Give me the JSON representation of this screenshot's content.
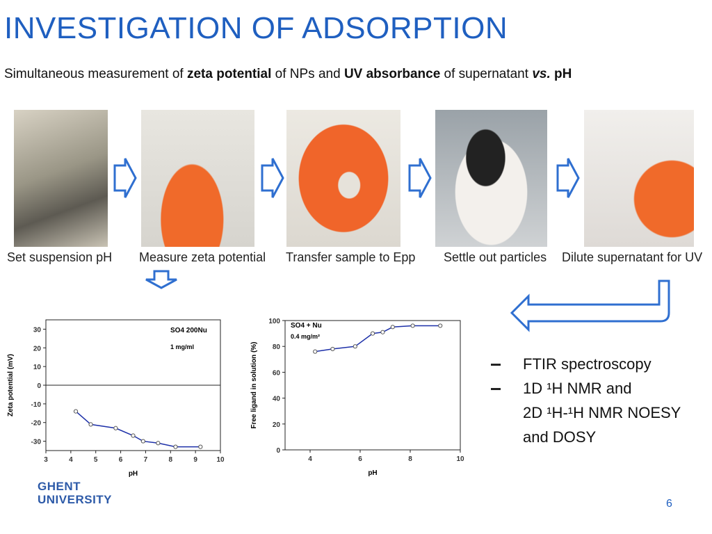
{
  "header": {
    "title": "INVESTIGATION OF ADSORPTION",
    "subtitle": [
      {
        "text": "Simultaneous measurement of ",
        "bold": false
      },
      {
        "text": "zeta potential",
        "bold": true
      },
      {
        "text": " of NPs and ",
        "bold": false
      },
      {
        "text": "UV absorbance",
        "bold": true
      },
      {
        "text": " of supernatant ",
        "bold": false
      },
      {
        "text": "vs.",
        "bold": true,
        "italic": true
      },
      {
        "text": " pH",
        "bold": true
      }
    ]
  },
  "steps": [
    "Set suspension pH",
    "Measure zeta potential",
    "Transfer sample to Epp",
    "Settle out particles",
    "Dilute supernatant for UV"
  ],
  "charts": [
    {
      "type": "line",
      "ylabel": "Zeta potential (mV)",
      "xlabel": "pH",
      "annotations": [
        "SO4 200Nu",
        "1 mg/ml"
      ],
      "x": [
        4.2,
        4.8,
        5.8,
        6.5,
        6.9,
        7.5,
        8.2,
        9.2
      ],
      "values": [
        -14,
        -21,
        -23,
        -27,
        -30,
        -31,
        -33,
        -33
      ],
      "color": "#1c2fa8",
      "xlim": [
        3,
        10
      ],
      "xticks": [
        3,
        4,
        5,
        6,
        7,
        8,
        9,
        10
      ],
      "ylim": [
        -35,
        35
      ],
      "yticks": [
        -30,
        -20,
        -10,
        0,
        10,
        20,
        30
      ]
    },
    {
      "type": "line",
      "ylabel": "Free ligand in solution (%)",
      "xlabel": "pH",
      "annotations": [
        "SO4 + Nu",
        "0.4 mg/m²"
      ],
      "x": [
        4.2,
        4.9,
        5.8,
        6.5,
        6.9,
        7.3,
        8.1,
        9.2
      ],
      "values": [
        76,
        78,
        80,
        90,
        91,
        95,
        96,
        96
      ],
      "color": "#1c2fa8",
      "xlim": [
        3,
        10
      ],
      "xticks": [
        4,
        6,
        8,
        10
      ],
      "ylim": [
        0,
        100
      ],
      "yticks": [
        0,
        20,
        40,
        60,
        80,
        100
      ]
    }
  ],
  "bullets": [
    "FTIR spectroscopy",
    "1D ¹H NMR and",
    "2D ¹H-¹H NMR NOESY",
    "and DOSY"
  ],
  "logo": [
    "GHENT",
    "UNIVERSITY"
  ],
  "page_number": "6"
}
